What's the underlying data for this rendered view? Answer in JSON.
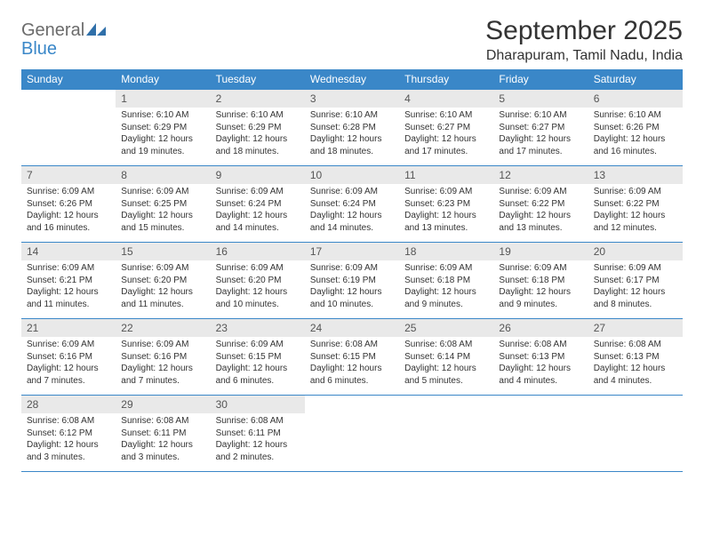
{
  "logo": {
    "general": "General",
    "blue": "Blue"
  },
  "title": "September 2025",
  "location": "Dharapuram, Tamil Nadu, India",
  "colors": {
    "header_bg": "#3a87c8",
    "header_text": "#ffffff",
    "daynum_bg": "#e9e9e9",
    "rule": "#3a87c8",
    "logo_gray": "#6b6b6b",
    "logo_blue": "#3a87c8"
  },
  "weekdays": [
    "Sunday",
    "Monday",
    "Tuesday",
    "Wednesday",
    "Thursday",
    "Friday",
    "Saturday"
  ],
  "weeks": [
    [
      null,
      {
        "n": "1",
        "sr": "Sunrise: 6:10 AM",
        "ss": "Sunset: 6:29 PM",
        "dl": "Daylight: 12 hours and 19 minutes."
      },
      {
        "n": "2",
        "sr": "Sunrise: 6:10 AM",
        "ss": "Sunset: 6:29 PM",
        "dl": "Daylight: 12 hours and 18 minutes."
      },
      {
        "n": "3",
        "sr": "Sunrise: 6:10 AM",
        "ss": "Sunset: 6:28 PM",
        "dl": "Daylight: 12 hours and 18 minutes."
      },
      {
        "n": "4",
        "sr": "Sunrise: 6:10 AM",
        "ss": "Sunset: 6:27 PM",
        "dl": "Daylight: 12 hours and 17 minutes."
      },
      {
        "n": "5",
        "sr": "Sunrise: 6:10 AM",
        "ss": "Sunset: 6:27 PM",
        "dl": "Daylight: 12 hours and 17 minutes."
      },
      {
        "n": "6",
        "sr": "Sunrise: 6:10 AM",
        "ss": "Sunset: 6:26 PM",
        "dl": "Daylight: 12 hours and 16 minutes."
      }
    ],
    [
      {
        "n": "7",
        "sr": "Sunrise: 6:09 AM",
        "ss": "Sunset: 6:26 PM",
        "dl": "Daylight: 12 hours and 16 minutes."
      },
      {
        "n": "8",
        "sr": "Sunrise: 6:09 AM",
        "ss": "Sunset: 6:25 PM",
        "dl": "Daylight: 12 hours and 15 minutes."
      },
      {
        "n": "9",
        "sr": "Sunrise: 6:09 AM",
        "ss": "Sunset: 6:24 PM",
        "dl": "Daylight: 12 hours and 14 minutes."
      },
      {
        "n": "10",
        "sr": "Sunrise: 6:09 AM",
        "ss": "Sunset: 6:24 PM",
        "dl": "Daylight: 12 hours and 14 minutes."
      },
      {
        "n": "11",
        "sr": "Sunrise: 6:09 AM",
        "ss": "Sunset: 6:23 PM",
        "dl": "Daylight: 12 hours and 13 minutes."
      },
      {
        "n": "12",
        "sr": "Sunrise: 6:09 AM",
        "ss": "Sunset: 6:22 PM",
        "dl": "Daylight: 12 hours and 13 minutes."
      },
      {
        "n": "13",
        "sr": "Sunrise: 6:09 AM",
        "ss": "Sunset: 6:22 PM",
        "dl": "Daylight: 12 hours and 12 minutes."
      }
    ],
    [
      {
        "n": "14",
        "sr": "Sunrise: 6:09 AM",
        "ss": "Sunset: 6:21 PM",
        "dl": "Daylight: 12 hours and 11 minutes."
      },
      {
        "n": "15",
        "sr": "Sunrise: 6:09 AM",
        "ss": "Sunset: 6:20 PM",
        "dl": "Daylight: 12 hours and 11 minutes."
      },
      {
        "n": "16",
        "sr": "Sunrise: 6:09 AM",
        "ss": "Sunset: 6:20 PM",
        "dl": "Daylight: 12 hours and 10 minutes."
      },
      {
        "n": "17",
        "sr": "Sunrise: 6:09 AM",
        "ss": "Sunset: 6:19 PM",
        "dl": "Daylight: 12 hours and 10 minutes."
      },
      {
        "n": "18",
        "sr": "Sunrise: 6:09 AM",
        "ss": "Sunset: 6:18 PM",
        "dl": "Daylight: 12 hours and 9 minutes."
      },
      {
        "n": "19",
        "sr": "Sunrise: 6:09 AM",
        "ss": "Sunset: 6:18 PM",
        "dl": "Daylight: 12 hours and 9 minutes."
      },
      {
        "n": "20",
        "sr": "Sunrise: 6:09 AM",
        "ss": "Sunset: 6:17 PM",
        "dl": "Daylight: 12 hours and 8 minutes."
      }
    ],
    [
      {
        "n": "21",
        "sr": "Sunrise: 6:09 AM",
        "ss": "Sunset: 6:16 PM",
        "dl": "Daylight: 12 hours and 7 minutes."
      },
      {
        "n": "22",
        "sr": "Sunrise: 6:09 AM",
        "ss": "Sunset: 6:16 PM",
        "dl": "Daylight: 12 hours and 7 minutes."
      },
      {
        "n": "23",
        "sr": "Sunrise: 6:09 AM",
        "ss": "Sunset: 6:15 PM",
        "dl": "Daylight: 12 hours and 6 minutes."
      },
      {
        "n": "24",
        "sr": "Sunrise: 6:08 AM",
        "ss": "Sunset: 6:15 PM",
        "dl": "Daylight: 12 hours and 6 minutes."
      },
      {
        "n": "25",
        "sr": "Sunrise: 6:08 AM",
        "ss": "Sunset: 6:14 PM",
        "dl": "Daylight: 12 hours and 5 minutes."
      },
      {
        "n": "26",
        "sr": "Sunrise: 6:08 AM",
        "ss": "Sunset: 6:13 PM",
        "dl": "Daylight: 12 hours and 4 minutes."
      },
      {
        "n": "27",
        "sr": "Sunrise: 6:08 AM",
        "ss": "Sunset: 6:13 PM",
        "dl": "Daylight: 12 hours and 4 minutes."
      }
    ],
    [
      {
        "n": "28",
        "sr": "Sunrise: 6:08 AM",
        "ss": "Sunset: 6:12 PM",
        "dl": "Daylight: 12 hours and 3 minutes."
      },
      {
        "n": "29",
        "sr": "Sunrise: 6:08 AM",
        "ss": "Sunset: 6:11 PM",
        "dl": "Daylight: 12 hours and 3 minutes."
      },
      {
        "n": "30",
        "sr": "Sunrise: 6:08 AM",
        "ss": "Sunset: 6:11 PM",
        "dl": "Daylight: 12 hours and 2 minutes."
      },
      null,
      null,
      null,
      null
    ]
  ]
}
